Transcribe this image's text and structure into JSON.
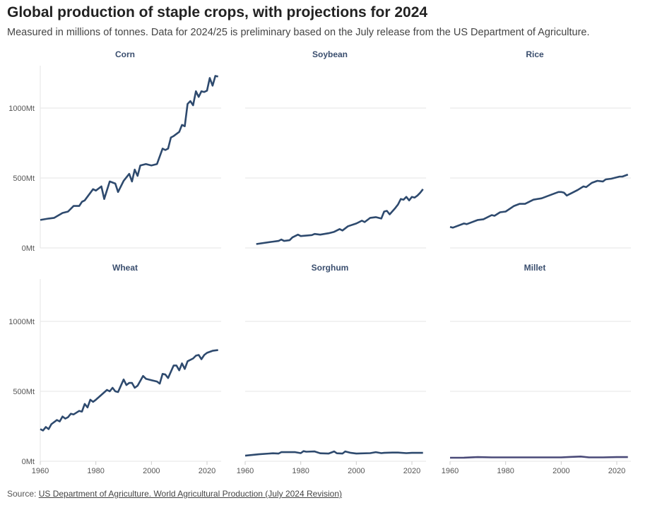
{
  "title": "Global production of staple crops, with projections for 2024",
  "subtitle": "Measured in millions of tonnes. Data for 2024/25 is preliminary based on the July release from the US Department of Agriculture.",
  "source": {
    "label": "Source:",
    "link_text": "US Department of Agriculture. World Agricultural Production (July 2024 Revision)"
  },
  "colors": {
    "line": "#2e4a6e",
    "millet": "#4a4a78",
    "grid": "#e6e6e6"
  },
  "chart_data": {
    "type": "line",
    "layout": "small-multiples 3x2",
    "xlim": [
      1960,
      2024
    ],
    "ylim": [
      0,
      1300
    ],
    "x_ticks": [
      1960,
      1980,
      2000,
      2020
    ],
    "y_ticks": [
      {
        "value": 0,
        "label": "0Mt"
      },
      {
        "value": 500,
        "label": "500Mt"
      },
      {
        "value": 1000,
        "label": "1000Mt"
      }
    ],
    "grid": true,
    "panels": [
      {
        "name": "Corn",
        "points": [
          [
            1960,
            200
          ],
          [
            1963,
            210
          ],
          [
            1965,
            215
          ],
          [
            1968,
            250
          ],
          [
            1970,
            260
          ],
          [
            1972,
            300
          ],
          [
            1974,
            300
          ],
          [
            1975,
            330
          ],
          [
            1976,
            340
          ],
          [
            1979,
            420
          ],
          [
            1980,
            410
          ],
          [
            1982,
            440
          ],
          [
            1983,
            350
          ],
          [
            1985,
            475
          ],
          [
            1987,
            460
          ],
          [
            1988,
            400
          ],
          [
            1990,
            480
          ],
          [
            1992,
            530
          ],
          [
            1993,
            475
          ],
          [
            1994,
            560
          ],
          [
            1995,
            515
          ],
          [
            1996,
            590
          ],
          [
            1998,
            600
          ],
          [
            2000,
            590
          ],
          [
            2002,
            600
          ],
          [
            2004,
            710
          ],
          [
            2005,
            700
          ],
          [
            2006,
            710
          ],
          [
            2007,
            790
          ],
          [
            2008,
            800
          ],
          [
            2010,
            830
          ],
          [
            2011,
            880
          ],
          [
            2012,
            870
          ],
          [
            2013,
            1030
          ],
          [
            2014,
            1050
          ],
          [
            2015,
            1020
          ],
          [
            2016,
            1120
          ],
          [
            2017,
            1080
          ],
          [
            2018,
            1120
          ],
          [
            2019,
            1115
          ],
          [
            2020,
            1125
          ],
          [
            2021,
            1215
          ],
          [
            2022,
            1160
          ],
          [
            2023,
            1230
          ],
          [
            2024,
            1225
          ]
        ]
      },
      {
        "name": "Soybean",
        "points": [
          [
            1964,
            28
          ],
          [
            1970,
            45
          ],
          [
            1972,
            50
          ],
          [
            1973,
            60
          ],
          [
            1974,
            50
          ],
          [
            1976,
            55
          ],
          [
            1977,
            75
          ],
          [
            1979,
            95
          ],
          [
            1980,
            85
          ],
          [
            1984,
            92
          ],
          [
            1985,
            100
          ],
          [
            1987,
            95
          ],
          [
            1990,
            105
          ],
          [
            1992,
            115
          ],
          [
            1994,
            135
          ],
          [
            1995,
            125
          ],
          [
            1997,
            155
          ],
          [
            2000,
            175
          ],
          [
            2002,
            195
          ],
          [
            2003,
            185
          ],
          [
            2005,
            215
          ],
          [
            2007,
            220
          ],
          [
            2009,
            210
          ],
          [
            2010,
            260
          ],
          [
            2011,
            265
          ],
          [
            2012,
            240
          ],
          [
            2014,
            285
          ],
          [
            2015,
            310
          ],
          [
            2016,
            350
          ],
          [
            2017,
            345
          ],
          [
            2018,
            365
          ],
          [
            2019,
            340
          ],
          [
            2020,
            365
          ],
          [
            2021,
            360
          ],
          [
            2022,
            375
          ],
          [
            2023,
            395
          ],
          [
            2024,
            420
          ]
        ]
      },
      {
        "name": "Rice",
        "points": [
          [
            1960,
            150
          ],
          [
            1961,
            145
          ],
          [
            1965,
            175
          ],
          [
            1966,
            170
          ],
          [
            1970,
            200
          ],
          [
            1972,
            205
          ],
          [
            1975,
            235
          ],
          [
            1976,
            230
          ],
          [
            1978,
            255
          ],
          [
            1980,
            260
          ],
          [
            1983,
            300
          ],
          [
            1985,
            315
          ],
          [
            1987,
            315
          ],
          [
            1990,
            345
          ],
          [
            1993,
            355
          ],
          [
            1995,
            370
          ],
          [
            1999,
            400
          ],
          [
            2000,
            400
          ],
          [
            2001,
            395
          ],
          [
            2002,
            375
          ],
          [
            2004,
            395
          ],
          [
            2006,
            415
          ],
          [
            2008,
            440
          ],
          [
            2009,
            435
          ],
          [
            2011,
            465
          ],
          [
            2013,
            480
          ],
          [
            2015,
            475
          ],
          [
            2016,
            490
          ],
          [
            2018,
            495
          ],
          [
            2019,
            500
          ],
          [
            2021,
            510
          ],
          [
            2022,
            510
          ],
          [
            2024,
            525
          ]
        ]
      },
      {
        "name": "Wheat",
        "points": [
          [
            1960,
            230
          ],
          [
            1961,
            220
          ],
          [
            1962,
            245
          ],
          [
            1963,
            230
          ],
          [
            1964,
            265
          ],
          [
            1966,
            295
          ],
          [
            1967,
            285
          ],
          [
            1968,
            320
          ],
          [
            1969,
            305
          ],
          [
            1970,
            315
          ],
          [
            1971,
            340
          ],
          [
            1972,
            335
          ],
          [
            1974,
            360
          ],
          [
            1975,
            355
          ],
          [
            1976,
            410
          ],
          [
            1977,
            385
          ],
          [
            1978,
            440
          ],
          [
            1979,
            425
          ],
          [
            1980,
            440
          ],
          [
            1982,
            475
          ],
          [
            1984,
            510
          ],
          [
            1985,
            500
          ],
          [
            1986,
            525
          ],
          [
            1987,
            500
          ],
          [
            1988,
            495
          ],
          [
            1990,
            585
          ],
          [
            1991,
            545
          ],
          [
            1992,
            560
          ],
          [
            1993,
            560
          ],
          [
            1994,
            525
          ],
          [
            1995,
            540
          ],
          [
            1997,
            610
          ],
          [
            1998,
            590
          ],
          [
            2000,
            580
          ],
          [
            2002,
            570
          ],
          [
            2003,
            555
          ],
          [
            2004,
            625
          ],
          [
            2005,
            620
          ],
          [
            2006,
            595
          ],
          [
            2008,
            685
          ],
          [
            2009,
            685
          ],
          [
            2010,
            650
          ],
          [
            2011,
            700
          ],
          [
            2012,
            660
          ],
          [
            2013,
            715
          ],
          [
            2015,
            735
          ],
          [
            2016,
            755
          ],
          [
            2017,
            760
          ],
          [
            2018,
            730
          ],
          [
            2019,
            760
          ],
          [
            2020,
            775
          ],
          [
            2022,
            790
          ],
          [
            2024,
            795
          ]
        ]
      },
      {
        "name": "Sorghum",
        "points": [
          [
            1960,
            40
          ],
          [
            1965,
            50
          ],
          [
            1970,
            57
          ],
          [
            1972,
            55
          ],
          [
            1973,
            65
          ],
          [
            1978,
            65
          ],
          [
            1980,
            58
          ],
          [
            1981,
            72
          ],
          [
            1982,
            68
          ],
          [
            1985,
            70
          ],
          [
            1987,
            57
          ],
          [
            1990,
            55
          ],
          [
            1992,
            70
          ],
          [
            1993,
            57
          ],
          [
            1995,
            55
          ],
          [
            1996,
            70
          ],
          [
            1998,
            60
          ],
          [
            2000,
            55
          ],
          [
            2005,
            58
          ],
          [
            2007,
            65
          ],
          [
            2009,
            58
          ],
          [
            2010,
            60
          ],
          [
            2013,
            62
          ],
          [
            2015,
            62
          ],
          [
            2018,
            58
          ],
          [
            2020,
            60
          ],
          [
            2022,
            60
          ],
          [
            2024,
            60
          ]
        ]
      },
      {
        "name": "Millet",
        "points": [
          [
            1960,
            25
          ],
          [
            1965,
            26
          ],
          [
            1970,
            30
          ],
          [
            1975,
            28
          ],
          [
            1980,
            28
          ],
          [
            1990,
            28
          ],
          [
            2000,
            28
          ],
          [
            2003,
            31
          ],
          [
            2007,
            34
          ],
          [
            2010,
            28
          ],
          [
            2015,
            28
          ],
          [
            2020,
            30
          ],
          [
            2024,
            30
          ]
        ]
      }
    ]
  }
}
